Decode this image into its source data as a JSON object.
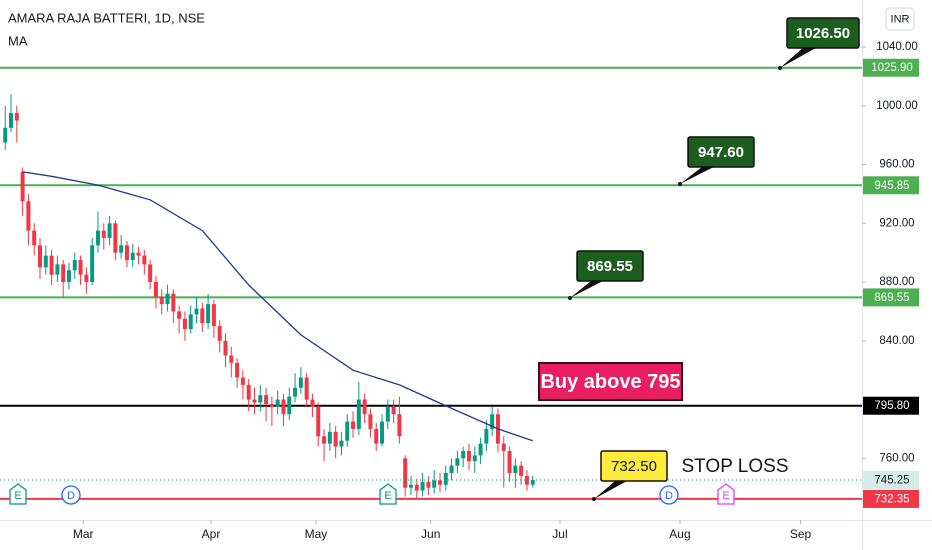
{
  "chart_data": {
    "type": "candlestick",
    "title": "AMARA RAJA BATTERI, 1D, NSE",
    "currency": "INR",
    "up_color": "#089981",
    "down_color": "#f23645",
    "grid": false,
    "xlim": [
      -0.9,
      147.8
    ],
    "xticks": [
      {
        "value": 13.45,
        "label": "Mar"
      },
      {
        "value": 35.5,
        "label": "Apr"
      },
      {
        "value": 53.6,
        "label": "May"
      },
      {
        "value": 73.4,
        "label": "Jun"
      },
      {
        "value": 95.7,
        "label": "Jul"
      },
      {
        "value": 116.4,
        "label": "Aug"
      },
      {
        "value": 137.2,
        "label": "Sep"
      }
    ],
    "ylim": [
      718,
      1072
    ],
    "yticks": [
      {
        "value": 760,
        "label": "760.00"
      },
      {
        "value": 840,
        "label": "840.00"
      },
      {
        "value": 880,
        "label": "880.00"
      },
      {
        "value": 920,
        "label": "920.00"
      },
      {
        "value": 960,
        "label": "960.00"
      },
      {
        "value": 1000,
        "label": "1000.00"
      },
      {
        "value": 1040,
        "label": "1040.00"
      }
    ],
    "open": [
      975,
      985,
      995,
      955,
      935,
      915,
      905,
      890,
      898,
      885,
      892,
      880,
      888,
      895,
      885,
      880,
      905,
      915,
      910,
      920,
      900,
      905,
      895,
      900,
      898,
      892,
      880,
      870,
      865,
      872,
      860,
      855,
      848,
      858,
      862,
      852,
      865,
      850,
      840,
      830,
      825,
      815,
      810,
      800,
      798,
      803,
      797,
      795,
      800,
      790,
      802,
      808,
      815,
      800,
      795,
      775,
      770,
      778,
      768,
      772,
      785,
      780,
      800,
      790,
      780,
      770,
      785,
      795,
      790,
      760,
      740,
      742,
      738,
      744,
      740,
      745,
      742,
      750,
      755,
      760,
      765,
      758,
      762,
      770,
      780,
      790,
      770,
      765,
      750,
      755,
      748,
      742
    ],
    "high": [
      1000,
      1008,
      1000,
      958,
      940,
      920,
      910,
      905,
      902,
      898,
      895,
      893,
      900,
      898,
      890,
      910,
      928,
      920,
      925,
      922,
      912,
      908,
      906,
      904,
      902,
      895,
      884,
      875,
      878,
      875,
      864,
      860,
      864,
      870,
      866,
      872,
      868,
      854,
      845,
      836,
      828,
      820,
      814,
      808,
      810,
      808,
      802,
      806,
      804,
      808,
      818,
      822,
      818,
      804,
      798,
      780,
      784,
      782,
      778,
      790,
      792,
      812,
      804,
      794,
      784,
      790,
      800,
      800,
      802,
      762,
      748,
      746,
      750,
      748,
      752,
      750,
      755,
      760,
      765,
      768,
      770,
      768,
      774,
      786,
      795,
      794,
      775,
      768,
      760,
      758,
      752,
      748
    ],
    "low": [
      970,
      982,
      975,
      925,
      905,
      898,
      882,
      885,
      878,
      880,
      870,
      875,
      882,
      878,
      872,
      878,
      900,
      902,
      905,
      895,
      896,
      890,
      890,
      892,
      885,
      875,
      862,
      858,
      860,
      852,
      845,
      840,
      845,
      852,
      846,
      848,
      842,
      832,
      822,
      815,
      808,
      800,
      792,
      790,
      792,
      785,
      782,
      790,
      782,
      786,
      798,
      804,
      795,
      788,
      768,
      758,
      765,
      760,
      762,
      768,
      774,
      776,
      784,
      774,
      765,
      768,
      780,
      784,
      770,
      734,
      735,
      732,
      734,
      735,
      736,
      737,
      738,
      745,
      750,
      754,
      752,
      750,
      756,
      765,
      775,
      764,
      740,
      744,
      740,
      742,
      738,
      740
    ],
    "close": [
      985,
      995,
      990,
      935,
      915,
      905,
      890,
      898,
      885,
      892,
      880,
      888,
      895,
      885,
      880,
      905,
      915,
      910,
      920,
      900,
      905,
      895,
      900,
      898,
      892,
      880,
      870,
      865,
      872,
      860,
      855,
      848,
      858,
      862,
      852,
      865,
      850,
      840,
      830,
      825,
      815,
      810,
      800,
      798,
      803,
      797,
      795,
      800,
      790,
      802,
      808,
      815,
      800,
      795,
      775,
      770,
      778,
      768,
      772,
      785,
      780,
      800,
      790,
      780,
      770,
      785,
      795,
      790,
      775,
      740,
      742,
      738,
      744,
      740,
      745,
      742,
      750,
      755,
      760,
      765,
      758,
      762,
      770,
      780,
      790,
      770,
      765,
      750,
      755,
      748,
      742,
      745.25
    ],
    "ma": {
      "name": "MA",
      "color": "#1e3a8a",
      "x": [
        3,
        8,
        16,
        25,
        34,
        42,
        51,
        60,
        68,
        77,
        85,
        91
      ],
      "values": [
        955,
        952,
        946,
        936,
        915,
        878,
        844,
        820,
        810,
        794,
        780,
        772
      ]
    },
    "levels": [
      {
        "value": 1025.9,
        "label": "1025.90",
        "color": "#4caf50"
      },
      {
        "value": 945.85,
        "color": "#4caf50"
      },
      {
        "value": 869.55,
        "color": "#4caf50"
      },
      {
        "value": 795.8,
        "label": "795.80",
        "color": "#000000"
      },
      {
        "value": 732.35,
        "color": "#f23645"
      }
    ],
    "annotations": [
      "1026.50",
      "947.60",
      "869.55",
      "Buy above 795",
      "732.50",
      "STOP LOSS"
    ],
    "events": [
      "E",
      "D",
      "E",
      "D",
      "E"
    ]
  }
}
